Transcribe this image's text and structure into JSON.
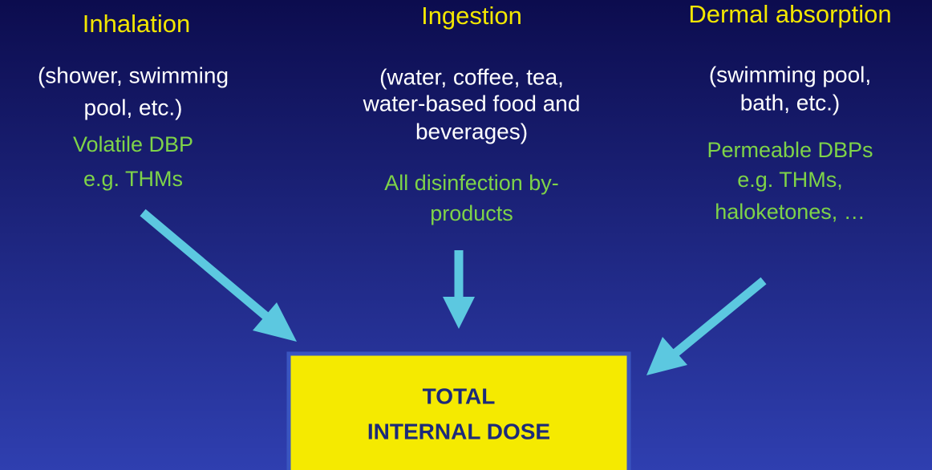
{
  "columns": [
    {
      "title": "Inhalation",
      "routes": [
        "(shower, swimming",
        "pool, etc.)"
      ],
      "compounds": [
        "Volatile DBP",
        "e.g. THMs"
      ]
    },
    {
      "title": "Ingestion",
      "routes": [
        "(water, coffee, tea,",
        "water-based food and",
        "beverages)"
      ],
      "compounds": [
        "All disinfection by-",
        "products"
      ]
    },
    {
      "title": "Dermal absorption",
      "routes": [
        "(swimming pool,",
        "bath, etc.)"
      ],
      "compounds": [
        "Permeable DBPs",
        "e.g. THMs,",
        "haloketones, …"
      ]
    }
  ],
  "target": {
    "lines": [
      "TOTAL",
      "INTERNAL DOSE"
    ]
  }
}
